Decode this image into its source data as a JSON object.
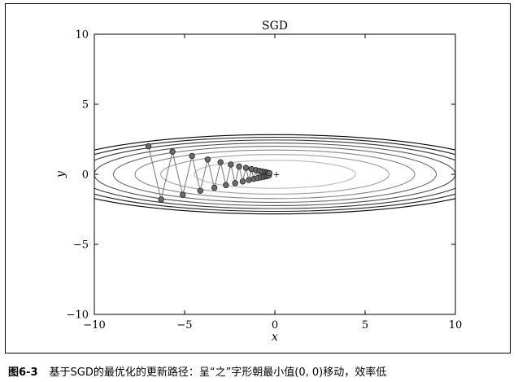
{
  "chart_data": {
    "type": "line",
    "title": "SGD",
    "xlabel": "x",
    "ylabel": "y",
    "xlim": [
      -10,
      10
    ],
    "ylim": [
      -10,
      10
    ],
    "x_ticks": [
      "−10",
      "−5",
      "0",
      "5",
      "10"
    ],
    "y_ticks": [
      "10",
      "5",
      "0",
      "−5",
      "−10"
    ],
    "function": "f(x, y) = x^2/20 + y^2",
    "contour_levels": [
      1,
      2,
      3,
      4,
      5,
      6,
      7,
      8
    ],
    "minimum": [
      0,
      0
    ],
    "minimum_marker": "+",
    "series": [
      {
        "x": [
          -7.0,
          -6.3,
          -5.67,
          -5.1,
          -4.59,
          -4.13,
          -3.72,
          -3.35,
          -3.01,
          -2.71,
          -2.44,
          -2.2,
          -1.98,
          -1.78,
          -1.6,
          -1.44,
          -1.3,
          -1.17,
          -1.05,
          -0.95,
          -0.85,
          -0.77,
          -0.69,
          -0.62,
          -0.56,
          -0.5,
          -0.45,
          -0.41,
          -0.37,
          -0.33,
          -0.3
        ],
        "y": [
          2.0,
          -1.8,
          1.62,
          -1.46,
          1.31,
          -1.18,
          1.06,
          -0.96,
          0.86,
          -0.77,
          0.7,
          -0.63,
          0.56,
          -0.51,
          0.46,
          -0.41,
          0.37,
          -0.33,
          0.3,
          -0.27,
          0.24,
          -0.22,
          0.2,
          -0.18,
          0.16,
          -0.14,
          0.13,
          -0.12,
          0.1,
          -0.09,
          0.08
        ]
      }
    ],
    "grid": false,
    "colors": {
      "path_line": "#777777",
      "marker_fill": "#6b6b6b",
      "marker_edge": "#222222",
      "contour_inner": "#bbbbbb",
      "contour_outer": "#000000"
    }
  },
  "caption": {
    "number": "图6-3",
    "text": "基于SGD的最优化的更新路径：呈“之”字形朝最小值(0, 0)移动，效率低"
  }
}
